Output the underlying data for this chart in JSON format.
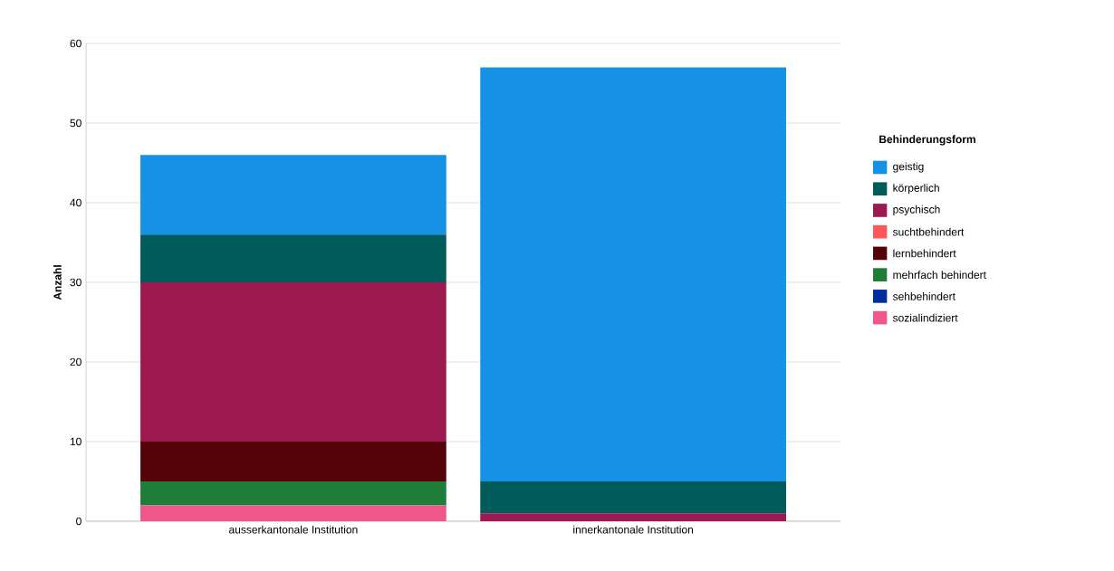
{
  "chart_data": {
    "type": "bar",
    "stacked": true,
    "ylabel": "Anzahl",
    "legend_title": "Behinderungsform",
    "categories": [
      "ausserkantonale Institution",
      "innerkantonale Institution"
    ],
    "series": [
      {
        "name": "sozialindiziert",
        "color": "#ed5789",
        "values": [
          2,
          0
        ]
      },
      {
        "name": "sehbehindert",
        "color": "#002d9e",
        "values": [
          0,
          0
        ]
      },
      {
        "name": "mehrfach behindert",
        "color": "#1e7e37",
        "values": [
          3,
          0
        ]
      },
      {
        "name": "lernbehindert",
        "color": "#540409",
        "values": [
          5,
          0
        ]
      },
      {
        "name": "suchtbehindert",
        "color": "#ff5757",
        "values": [
          0,
          0
        ]
      },
      {
        "name": "psychisch",
        "color": "#9c1a50",
        "values": [
          20,
          1
        ]
      },
      {
        "name": "körperlich",
        "color": "#005b5b",
        "values": [
          6,
          4
        ]
      },
      {
        "name": "geistig",
        "color": "#1591e6",
        "values": [
          10,
          52
        ]
      }
    ],
    "ylim": [
      0,
      60
    ],
    "yticks": [
      0,
      10,
      20,
      30,
      40,
      50,
      60
    ],
    "grid": "y",
    "legend": "right"
  }
}
